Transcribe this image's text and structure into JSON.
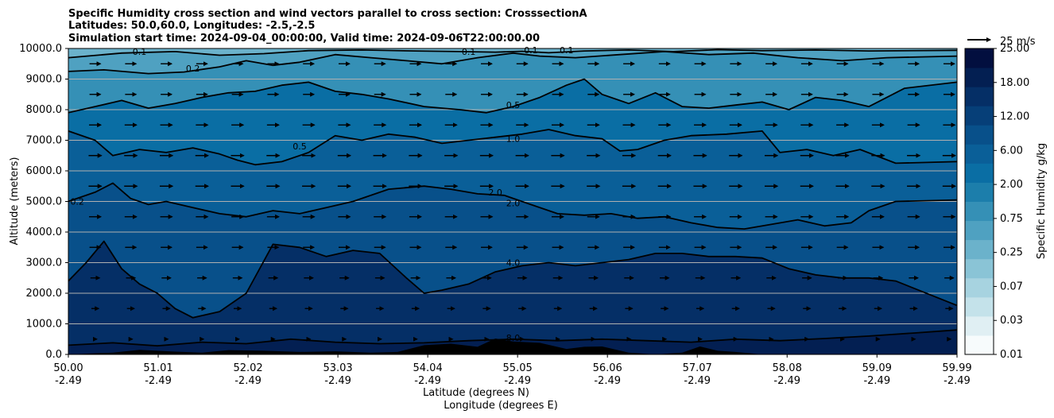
{
  "chart_data": {
    "type": "heatmap",
    "title_lines": [
      "Specific Humidity cross section and wind vectors parallel to cross section: CrosssectionA",
      "Latitudes: 50.0,60.0, Longitudes: -2.5,-2.5",
      "Simulation start time: 2024-09-04_00:00:00, Valid time: 2024-09-06T22:00:00.00"
    ],
    "ylabel": "Altitude (meters)",
    "xlabel_lat": "Latitude (degrees N)",
    "xlabel_lon": "Longitude (degrees E)",
    "ylim": [
      0,
      10000
    ],
    "xlim": [
      50.0,
      59.99
    ],
    "y_ticks": [
      {
        "value": 0,
        "label": "0.0"
      },
      {
        "value": 1000,
        "label": "1000.0"
      },
      {
        "value": 2000,
        "label": "2000.0"
      },
      {
        "value": 3000,
        "label": "3000.0"
      },
      {
        "value": 4000,
        "label": "4000.0"
      },
      {
        "value": 5000,
        "label": "5000.0"
      },
      {
        "value": 6000,
        "label": "6000.0"
      },
      {
        "value": 7000,
        "label": "7000.0"
      },
      {
        "value": 8000,
        "label": "8000.0"
      },
      {
        "value": 9000,
        "label": "9000.0"
      },
      {
        "value": 10000,
        "label": "10000.0"
      }
    ],
    "x_ticks": [
      {
        "lat": 50.0,
        "lat_label": "50.00",
        "lon_label": "-2.49"
      },
      {
        "lat": 51.01,
        "lat_label": "51.01",
        "lon_label": "-2.49"
      },
      {
        "lat": 52.02,
        "lat_label": "52.02",
        "lon_label": "-2.49"
      },
      {
        "lat": 53.03,
        "lat_label": "53.03",
        "lon_label": "-2.49"
      },
      {
        "lat": 54.04,
        "lat_label": "54.04",
        "lon_label": "-2.49"
      },
      {
        "lat": 55.05,
        "lat_label": "55.05",
        "lon_label": "-2.49"
      },
      {
        "lat": 56.06,
        "lat_label": "56.06",
        "lon_label": "-2.49"
      },
      {
        "lat": 57.07,
        "lat_label": "57.07",
        "lon_label": "-2.49"
      },
      {
        "lat": 58.08,
        "lat_label": "58.08",
        "lon_label": "-2.49"
      },
      {
        "lat": 59.09,
        "lat_label": "59.09",
        "lon_label": "-2.49"
      },
      {
        "lat": 59.99,
        "lat_label": "59.99",
        "lon_label": "-2.49"
      }
    ],
    "colorbar": {
      "label": "Specific Humidity g/kg",
      "levels": [
        "0.01",
        "0.03",
        "0.07",
        "0.25",
        "0.75",
        "2.00",
        "6.00",
        "12.00",
        "18.00",
        "25.00"
      ],
      "colors": [
        "#f7fbfc",
        "#e0eff3",
        "#c4e2ea",
        "#a7d3e0",
        "#8ac4d6",
        "#6bb2cb",
        "#4fa1c1",
        "#3590b6",
        "#1c7eab",
        "#0a6ea4",
        "#0a5f98",
        "#08508a",
        "#063f78",
        "#052f66",
        "#031f52",
        "#020f3f"
      ]
    },
    "wind_reference": {
      "label": "25 m/s",
      "speed": 25
    },
    "contours": [
      {
        "level": 0.1,
        "label": "0.1",
        "points": [
          [
            50.0,
            9700
          ],
          [
            50.6,
            9850
          ],
          [
            51.2,
            9900
          ],
          [
            51.7,
            9780
          ],
          [
            52.2,
            9830
          ],
          [
            52.7,
            9930
          ],
          [
            53.3,
            9950
          ],
          [
            53.9,
            9920
          ],
          [
            54.4,
            9900
          ],
          [
            54.8,
            9880
          ],
          [
            55.1,
            9910
          ],
          [
            55.4,
            9860
          ],
          [
            55.8,
            9920
          ],
          [
            56.3,
            9950
          ],
          [
            56.8,
            9900
          ],
          [
            57.3,
            9960
          ],
          [
            57.8,
            9930
          ],
          [
            58.4,
            9950
          ],
          [
            59.0,
            9920
          ],
          [
            59.99,
            9940
          ]
        ]
      },
      {
        "level": 0.2,
        "label": "0.2",
        "points": [
          [
            50.0,
            9250
          ],
          [
            50.4,
            9300
          ],
          [
            50.9,
            9180
          ],
          [
            51.3,
            9230
          ],
          [
            51.7,
            9400
          ],
          [
            52.0,
            9600
          ],
          [
            52.3,
            9450
          ],
          [
            52.6,
            9550
          ],
          [
            53.0,
            9800
          ],
          [
            53.4,
            9700
          ],
          [
            53.8,
            9600
          ],
          [
            54.2,
            9500
          ],
          [
            54.6,
            9700
          ],
          [
            55.0,
            9850
          ],
          [
            55.3,
            9750
          ],
          [
            55.7,
            9700
          ],
          [
            56.2,
            9800
          ],
          [
            56.7,
            9900
          ],
          [
            57.2,
            9800
          ],
          [
            57.7,
            9850
          ],
          [
            58.2,
            9700
          ],
          [
            58.7,
            9600
          ],
          [
            59.2,
            9700
          ],
          [
            59.99,
            9750
          ]
        ]
      },
      {
        "level": 0.5,
        "label": "0.5",
        "points": [
          [
            50.0,
            7900
          ],
          [
            50.3,
            8100
          ],
          [
            50.6,
            8300
          ],
          [
            50.9,
            8050
          ],
          [
            51.2,
            8200
          ],
          [
            51.5,
            8400
          ],
          [
            51.8,
            8550
          ],
          [
            52.1,
            8600
          ],
          [
            52.4,
            8800
          ],
          [
            52.7,
            8900
          ],
          [
            53.0,
            8600
          ],
          [
            53.3,
            8500
          ],
          [
            53.6,
            8350
          ],
          [
            54.0,
            8100
          ],
          [
            54.4,
            8000
          ],
          [
            54.7,
            7900
          ],
          [
            55.0,
            8100
          ],
          [
            55.3,
            8400
          ],
          [
            55.6,
            8800
          ],
          [
            55.8,
            9000
          ],
          [
            56.0,
            8500
          ],
          [
            56.3,
            8200
          ],
          [
            56.6,
            8550
          ],
          [
            56.9,
            8100
          ],
          [
            57.2,
            8050
          ],
          [
            57.5,
            8150
          ],
          [
            57.8,
            8250
          ],
          [
            58.1,
            8000
          ],
          [
            58.4,
            8400
          ],
          [
            58.7,
            8300
          ],
          [
            59.0,
            8100
          ],
          [
            59.4,
            8700
          ],
          [
            59.99,
            8900
          ]
        ]
      },
      {
        "level": 1.0,
        "label": "1.0",
        "points": [
          [
            50.0,
            7300
          ],
          [
            50.3,
            7000
          ],
          [
            50.5,
            6500
          ],
          [
            50.8,
            6700
          ],
          [
            51.1,
            6600
          ],
          [
            51.4,
            6750
          ],
          [
            51.7,
            6550
          ],
          [
            51.9,
            6350
          ],
          [
            52.1,
            6200
          ],
          [
            52.4,
            6300
          ],
          [
            52.7,
            6600
          ],
          [
            53.0,
            7150
          ],
          [
            53.3,
            7000
          ],
          [
            53.6,
            7200
          ],
          [
            53.9,
            7100
          ],
          [
            54.2,
            6900
          ],
          [
            54.5,
            7000
          ],
          [
            54.8,
            7100
          ],
          [
            55.1,
            7200
          ],
          [
            55.4,
            7350
          ],
          [
            55.7,
            7150
          ],
          [
            56.0,
            7050
          ],
          [
            56.2,
            6650
          ],
          [
            56.4,
            6700
          ],
          [
            56.7,
            7000
          ],
          [
            57.0,
            7150
          ],
          [
            57.4,
            7200
          ],
          [
            57.8,
            7300
          ],
          [
            58.0,
            6600
          ],
          [
            58.3,
            6700
          ],
          [
            58.6,
            6500
          ],
          [
            58.9,
            6700
          ],
          [
            59.3,
            6250
          ],
          [
            59.99,
            6300
          ]
        ]
      },
      {
        "level": 2.0,
        "label": "2.0",
        "points": [
          [
            50.0,
            5000
          ],
          [
            50.3,
            5300
          ],
          [
            50.5,
            5600
          ],
          [
            50.7,
            5100
          ],
          [
            50.9,
            4900
          ],
          [
            51.1,
            5000
          ],
          [
            51.4,
            4800
          ],
          [
            51.7,
            4600
          ],
          [
            52.0,
            4500
          ],
          [
            52.3,
            4700
          ],
          [
            52.6,
            4600
          ],
          [
            52.9,
            4800
          ],
          [
            53.2,
            5000
          ],
          [
            53.6,
            5400
          ],
          [
            54.0,
            5500
          ],
          [
            54.3,
            5400
          ],
          [
            54.6,
            5250
          ],
          [
            54.9,
            5200
          ],
          [
            55.2,
            4900
          ],
          [
            55.5,
            4600
          ],
          [
            55.8,
            4550
          ],
          [
            56.1,
            4600
          ],
          [
            56.4,
            4450
          ],
          [
            56.7,
            4500
          ],
          [
            57.0,
            4300
          ],
          [
            57.3,
            4150
          ],
          [
            57.6,
            4100
          ],
          [
            57.9,
            4250
          ],
          [
            58.2,
            4400
          ],
          [
            58.5,
            4200
          ],
          [
            58.8,
            4300
          ],
          [
            59.0,
            4700
          ],
          [
            59.3,
            5000
          ],
          [
            59.99,
            5050
          ]
        ]
      },
      {
        "level": 4.0,
        "label": "4.0",
        "points": [
          [
            50.0,
            2400
          ],
          [
            50.2,
            3000
          ],
          [
            50.4,
            3700
          ],
          [
            50.6,
            2800
          ],
          [
            50.8,
            2300
          ],
          [
            51.0,
            2000
          ],
          [
            51.2,
            1500
          ],
          [
            51.4,
            1200
          ],
          [
            51.7,
            1400
          ],
          [
            52.0,
            2000
          ],
          [
            52.3,
            3600
          ],
          [
            52.6,
            3500
          ],
          [
            52.9,
            3200
          ],
          [
            53.2,
            3400
          ],
          [
            53.5,
            3300
          ],
          [
            53.8,
            2500
          ],
          [
            54.0,
            2000
          ],
          [
            54.2,
            2100
          ],
          [
            54.5,
            2300
          ],
          [
            54.8,
            2700
          ],
          [
            55.1,
            2900
          ],
          [
            55.4,
            3000
          ],
          [
            55.7,
            2900
          ],
          [
            56.0,
            3000
          ],
          [
            56.3,
            3100
          ],
          [
            56.6,
            3300
          ],
          [
            56.9,
            3300
          ],
          [
            57.2,
            3200
          ],
          [
            57.5,
            3200
          ],
          [
            57.8,
            3150
          ],
          [
            58.1,
            2800
          ],
          [
            58.4,
            2600
          ],
          [
            58.7,
            2500
          ],
          [
            59.0,
            2500
          ],
          [
            59.3,
            2400
          ],
          [
            59.99,
            1600
          ]
        ]
      },
      {
        "level": 8.0,
        "label": "8.0",
        "points": [
          [
            50.0,
            300
          ],
          [
            50.5,
            380
          ],
          [
            51.0,
            280
          ],
          [
            51.5,
            400
          ],
          [
            52.0,
            350
          ],
          [
            52.5,
            500
          ],
          [
            53.0,
            400
          ],
          [
            53.5,
            350
          ],
          [
            54.0,
            380
          ],
          [
            54.5,
            450
          ],
          [
            55.0,
            500
          ],
          [
            55.5,
            450
          ],
          [
            56.0,
            500
          ],
          [
            56.5,
            450
          ],
          [
            57.0,
            400
          ],
          [
            57.5,
            500
          ],
          [
            58.0,
            450
          ],
          [
            58.5,
            520
          ],
          [
            59.0,
            600
          ],
          [
            59.5,
            700
          ],
          [
            59.99,
            800
          ]
        ]
      }
    ],
    "contour_labels": [
      {
        "lat": 50.8,
        "alt": 9900,
        "text": "0.1"
      },
      {
        "lat": 54.5,
        "alt": 9900,
        "text": "0.1"
      },
      {
        "lat": 55.2,
        "alt": 9950,
        "text": "0.1"
      },
      {
        "lat": 55.6,
        "alt": 9950,
        "text": "0.1"
      },
      {
        "lat": 51.4,
        "alt": 9350,
        "text": "0.2"
      },
      {
        "lat": 50.1,
        "alt": 5000,
        "text": "0.2"
      },
      {
        "lat": 55.0,
        "alt": 8150,
        "text": "0.5"
      },
      {
        "lat": 52.6,
        "alt": 6800,
        "text": "0.5"
      },
      {
        "lat": 55.0,
        "alt": 7050,
        "text": "1.0"
      },
      {
        "lat": 54.8,
        "alt": 5300,
        "text": "2.0"
      },
      {
        "lat": 55.0,
        "alt": 4950,
        "text": "2.0"
      },
      {
        "lat": 55.0,
        "alt": 3000,
        "text": "4.0"
      },
      {
        "lat": 55.0,
        "alt": 550,
        "text": "8.0"
      }
    ],
    "terrain": [
      [
        50.0,
        0
      ],
      [
        50.5,
        60
      ],
      [
        50.8,
        150
      ],
      [
        51.2,
        90
      ],
      [
        51.5,
        60
      ],
      [
        51.8,
        140
      ],
      [
        52.2,
        120
      ],
      [
        52.6,
        80
      ],
      [
        53.0,
        100
      ],
      [
        53.4,
        60
      ],
      [
        53.7,
        80
      ],
      [
        54.0,
        300
      ],
      [
        54.3,
        350
      ],
      [
        54.6,
        250
      ],
      [
        54.8,
        520
      ],
      [
        55.0,
        420
      ],
      [
        55.3,
        380
      ],
      [
        55.6,
        180
      ],
      [
        55.8,
        250
      ],
      [
        56.0,
        260
      ],
      [
        56.3,
        60
      ],
      [
        56.6,
        0
      ],
      [
        56.9,
        60
      ],
      [
        57.1,
        260
      ],
      [
        57.3,
        120
      ],
      [
        57.5,
        80
      ],
      [
        57.8,
        0
      ],
      [
        59.99,
        0
      ]
    ],
    "wind_rows_alt": [
      500,
      1500,
      2500,
      3500,
      4500,
      5500,
      6500,
      7500,
      8500,
      9500
    ],
    "wind_cols_lat": [
      50.3,
      50.7,
      51.1,
      51.5,
      51.9,
      52.3,
      52.7,
      53.1,
      53.5,
      53.9,
      54.3,
      54.7,
      55.1,
      55.5,
      55.9,
      56.3,
      56.7,
      57.1,
      57.5,
      57.9,
      58.3,
      58.7,
      59.1,
      59.5,
      59.9
    ],
    "wind_speed_by_altitude": [
      4,
      8,
      10,
      12,
      13,
      14,
      14,
      13,
      12,
      12
    ]
  }
}
